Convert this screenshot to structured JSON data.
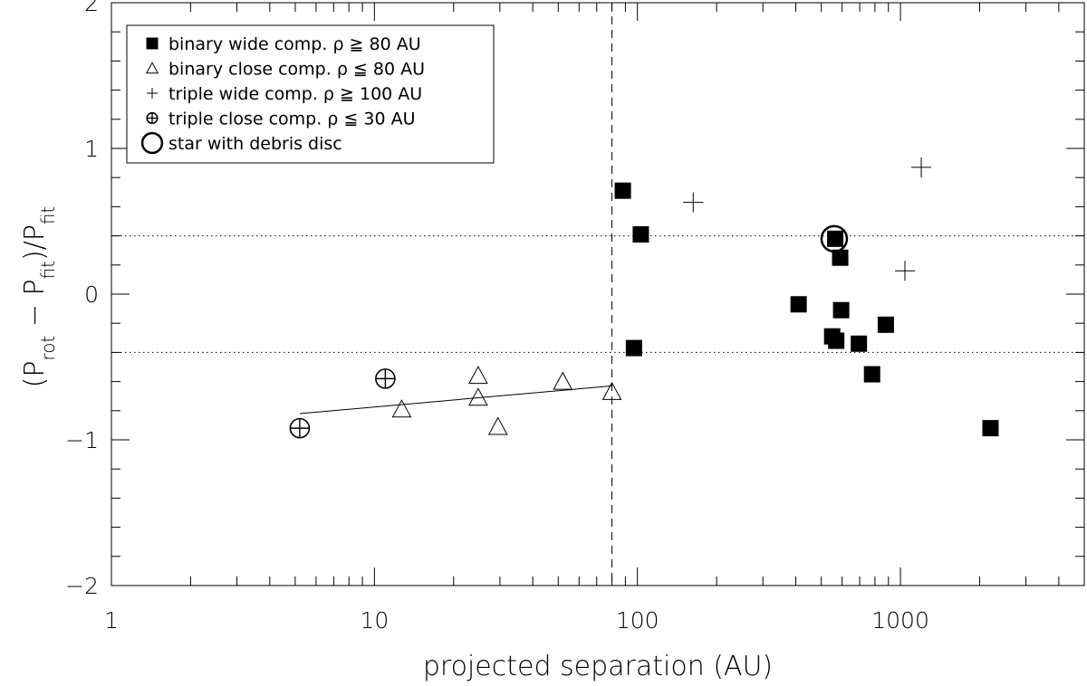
{
  "chart_data": {
    "type": "scatter",
    "xlabel": "projected separation (AU)",
    "ylabel": {
      "parts": [
        "(P",
        "rot",
        " − P",
        "fit",
        ")/P",
        "fit"
      ]
    },
    "xscale": "log",
    "xlim": [
      1,
      5000
    ],
    "ylim": [
      -2,
      2
    ],
    "x_ticks": [
      {
        "value": 1,
        "label": "1"
      },
      {
        "value": 10,
        "label": "10"
      },
      {
        "value": 100,
        "label": "100"
      },
      {
        "value": 1000,
        "label": "1000"
      }
    ],
    "y_ticks": [
      {
        "value": -2,
        "label": "−2"
      },
      {
        "value": -1,
        "label": "−1"
      },
      {
        "value": 0,
        "label": "0"
      },
      {
        "value": 1,
        "label": "1"
      },
      {
        "value": 2,
        "label": "2"
      }
    ],
    "reference_lines": {
      "vertical_dashed_x": 80,
      "horizontal_dotted_y": [
        0.4,
        -0.4
      ]
    },
    "fit_line": {
      "x": [
        5.2,
        80
      ],
      "y": [
        -0.82,
        -0.63
      ]
    },
    "legend": {
      "position": "top-left",
      "entries": [
        {
          "symbol": "filled-square",
          "text": "binary wide comp. ρ ≧ 80 AU"
        },
        {
          "symbol": "open-triangle",
          "text": "binary close comp. ρ ≦ 80 AU"
        },
        {
          "symbol": "plus",
          "text": "triple wide comp. ρ ≧ 100 AU"
        },
        {
          "symbol": "circle-plus",
          "text": "triple close comp. ρ ≦ 30 AU"
        },
        {
          "symbol": "big-circle",
          "text": "star with debris disc"
        }
      ]
    },
    "series": [
      {
        "name": "binary wide comp. ρ ≧ 80 AU",
        "symbol": "filled-square",
        "points": [
          [
            88,
            0.71
          ],
          [
            103,
            0.41
          ],
          [
            97,
            -0.37
          ],
          [
            410,
            -0.07
          ],
          [
            550,
            -0.29
          ],
          [
            565,
            0.38
          ],
          [
            570,
            -0.32
          ],
          [
            590,
            0.25
          ],
          [
            595,
            -0.11
          ],
          [
            695,
            -0.34
          ],
          [
            780,
            -0.55
          ],
          [
            880,
            -0.21
          ],
          [
            2200,
            -0.92
          ]
        ]
      },
      {
        "name": "binary close comp. ρ ≦ 80 AU",
        "symbol": "open-triangle",
        "points": [
          [
            12.7,
            -0.79
          ],
          [
            24.8,
            -0.56
          ],
          [
            24.8,
            -0.71
          ],
          [
            29.5,
            -0.91
          ],
          [
            52,
            -0.6
          ],
          [
            80,
            -0.67
          ]
        ]
      },
      {
        "name": "triple wide comp. ρ ≧ 100 AU",
        "symbol": "plus",
        "points": [
          [
            163,
            0.63
          ],
          [
            1040,
            0.16
          ],
          [
            1200,
            0.87
          ]
        ]
      },
      {
        "name": "triple close comp. ρ ≦ 30 AU",
        "symbol": "circle-plus",
        "points": [
          [
            5.2,
            -0.92
          ],
          [
            11,
            -0.58
          ]
        ]
      },
      {
        "name": "star with debris disc",
        "symbol": "big-circle",
        "points": [
          [
            560,
            0.38
          ]
        ]
      }
    ]
  }
}
